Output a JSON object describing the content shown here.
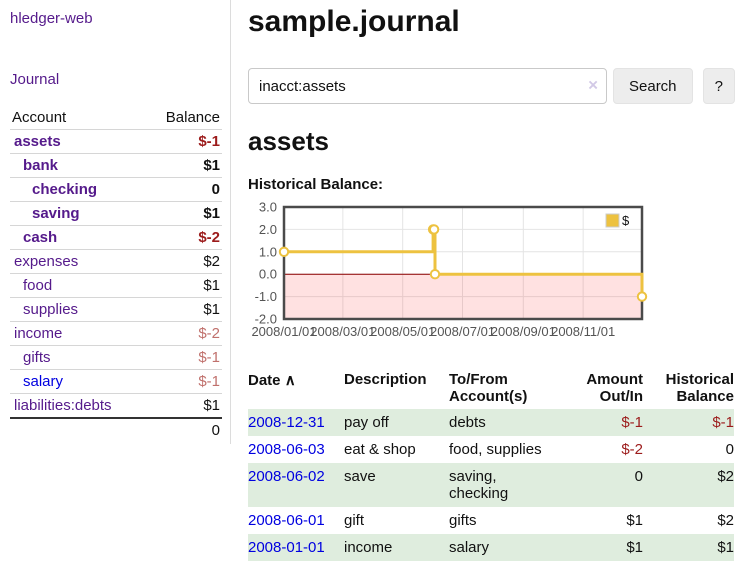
{
  "colors": {
    "link_purple": "#551a8b",
    "link_blue": "#0000e0",
    "negative_strong": "#9c1b1b",
    "negative_muted": "#c0706c",
    "row_green": "#dfedde",
    "chart_line": "#edc240",
    "chart_negative_fill": "#fbdcdc",
    "chart_zero_line": "#8b0000",
    "chart_border": "#4a4a4a",
    "axis_text": "#545454"
  },
  "sidebar": {
    "app_title": "hledger-web",
    "nav_journal": "Journal",
    "accounts": {
      "headers": {
        "account": "Account",
        "balance": "Balance"
      },
      "rows": [
        {
          "name": "assets",
          "balance": "$-1",
          "level": 1,
          "bold": true,
          "link": "purple",
          "balance_color": "neg"
        },
        {
          "name": "bank",
          "balance": "$1",
          "level": 2,
          "bold": true,
          "link": "purple",
          "balance_color": "pos"
        },
        {
          "name": "checking",
          "balance": "0",
          "level": 3,
          "bold": true,
          "link": "purple",
          "balance_color": "pos"
        },
        {
          "name": "saving",
          "balance": "$1",
          "level": 3,
          "bold": true,
          "link": "purple",
          "balance_color": "pos"
        },
        {
          "name": "cash",
          "balance": "$-2",
          "level": 2,
          "bold": true,
          "link": "purple",
          "balance_color": "neg"
        },
        {
          "name": "expenses",
          "balance": "$2",
          "level": 1,
          "bold": false,
          "link": "purple",
          "balance_color": "pos"
        },
        {
          "name": "food",
          "balance": "$1",
          "level": 2,
          "bold": false,
          "link": "purple",
          "balance_color": "pos"
        },
        {
          "name": "supplies",
          "balance": "$1",
          "level": 2,
          "bold": false,
          "link": "purple",
          "balance_color": "pos"
        },
        {
          "name": "income",
          "balance": "$-2",
          "level": 1,
          "bold": false,
          "link": "purple",
          "balance_color": "neg_muted"
        },
        {
          "name": "gifts",
          "balance": "$-1",
          "level": 2,
          "bold": false,
          "link": "purple",
          "balance_color": "neg_muted"
        },
        {
          "name": "salary",
          "balance": "$-1",
          "level": 2,
          "bold": false,
          "link": "blue",
          "balance_color": "neg_muted"
        },
        {
          "name": "liabilities:debts",
          "balance": "$1",
          "level": 1,
          "bold": false,
          "link": "purple",
          "balance_color": "pos"
        }
      ],
      "total": "0"
    }
  },
  "main": {
    "title": "sample.journal",
    "search": {
      "value": "inacct:assets",
      "clear_icon": "×",
      "search_button": "Search",
      "help_button": "?"
    },
    "account_heading": "assets",
    "chart_title": "Historical Balance:"
  },
  "chart_data": {
    "type": "line",
    "step": true,
    "title": "Historical Balance",
    "series": [
      {
        "name": "$",
        "color": "#edc240",
        "points": [
          [
            "2008-01-01",
            1
          ],
          [
            "2008-06-01",
            2
          ],
          [
            "2008-06-02",
            2
          ],
          [
            "2008-06-03",
            0
          ],
          [
            "2008-12-31",
            -1
          ]
        ]
      }
    ],
    "xrange": [
      "2008-01-01",
      "2008-12-31"
    ],
    "ylim": [
      -2,
      3
    ],
    "yticks": [
      {
        "value": 3,
        "label": "3.0"
      },
      {
        "value": 2,
        "label": "2.0"
      },
      {
        "value": 1,
        "label": "1.0"
      },
      {
        "value": 0,
        "label": "0.0"
      },
      {
        "value": -1,
        "label": "-1.0"
      },
      {
        "value": -2,
        "label": "-2.0"
      }
    ],
    "xticks": [
      {
        "date": "2008-01-01",
        "label": "2008/01/01"
      },
      {
        "date": "2008-03-01",
        "label": "2008/03/01"
      },
      {
        "date": "2008-05-01",
        "label": "2008/05/01"
      },
      {
        "date": "2008-07-01",
        "label": "2008/07/01"
      },
      {
        "date": "2008-09-01",
        "label": "2008/09/01"
      },
      {
        "date": "2008-11-01",
        "label": "2008/11/01"
      }
    ],
    "grid": true,
    "negative_region_shaded": true,
    "legend_position": "top-right"
  },
  "register": {
    "headers": {
      "date": "Date",
      "sort_icon": "∧",
      "description": "Description",
      "accounts": "To/From Account(s)",
      "amount": "Amount Out/In",
      "balance": "Historical Balance"
    },
    "rows": [
      {
        "date": "2008-12-31",
        "description": "pay off",
        "accounts": "debts",
        "amount": "$-1",
        "amount_color": "neg",
        "balance": "$-1",
        "balance_color": "neg"
      },
      {
        "date": "2008-06-03",
        "description": "eat & shop",
        "accounts": "food, supplies",
        "amount": "$-2",
        "amount_color": "neg",
        "balance": "0",
        "balance_color": "pos"
      },
      {
        "date": "2008-06-02",
        "description": "save",
        "accounts": "saving, checking",
        "amount": "0",
        "amount_color": "pos",
        "balance": "$2",
        "balance_color": "pos"
      },
      {
        "date": "2008-06-01",
        "description": "gift",
        "accounts": "gifts",
        "amount": "$1",
        "amount_color": "pos",
        "balance": "$2",
        "balance_color": "pos"
      },
      {
        "date": "2008-01-01",
        "description": "income",
        "accounts": "salary",
        "amount": "$1",
        "amount_color": "pos",
        "balance": "$1",
        "balance_color": "pos"
      }
    ]
  }
}
